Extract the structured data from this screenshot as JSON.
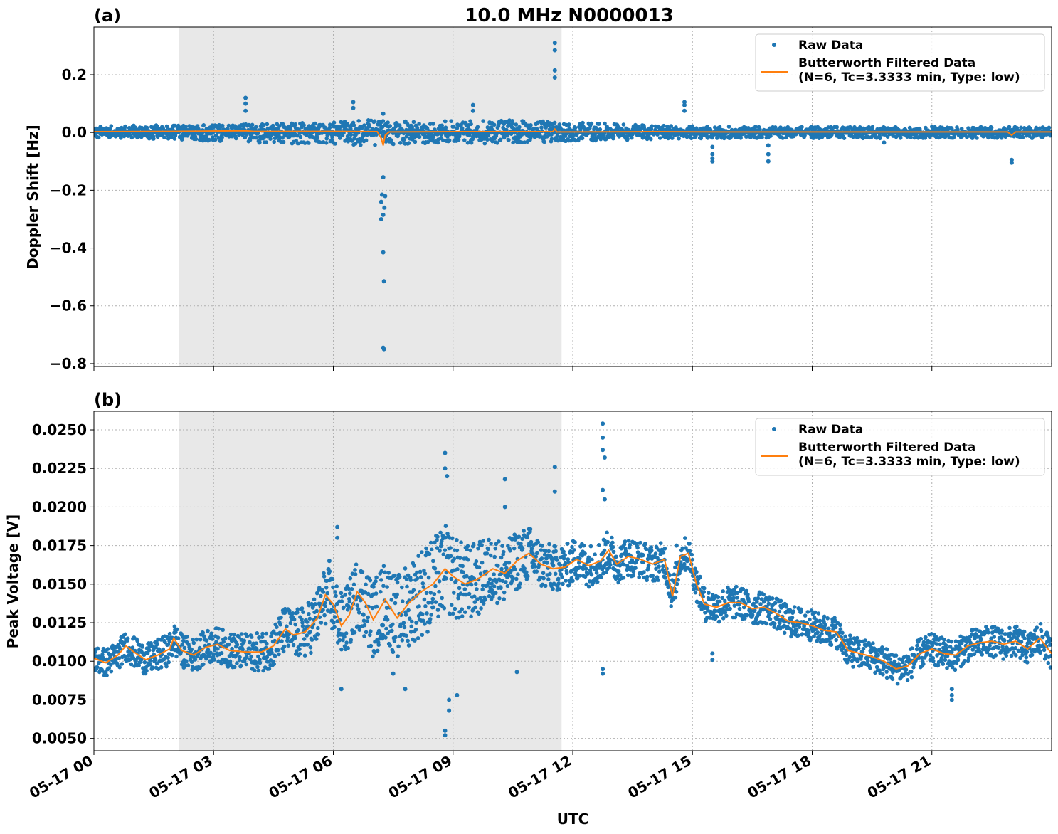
{
  "chart_data": {
    "title": "10.0 MHz N0000013",
    "xlabel": "UTC",
    "x_ticks": [
      "05-17 00",
      "05-17 03",
      "05-17 06",
      "05-17 09",
      "05-17 12",
      "05-17 15",
      "05-17 18",
      "05-17 21"
    ],
    "xlim_hours": [
      0,
      24
    ],
    "shaded_interval_hours": [
      2.13,
      11.72
    ],
    "colors": {
      "raw": "#1f77b4",
      "filtered": "#ff7f0e",
      "shade": "#e8e8e8",
      "grid": "#b0b0b0"
    },
    "legend": {
      "placement": "upper-right",
      "raw_label": "Raw Data",
      "filtered_label_line1": "Butterworth Filtered Data",
      "filtered_label_line2": "(N=6, Tc=3.3333 min, Type: low)"
    },
    "panels": [
      {
        "panel_label": "(a)",
        "type": "scatter+line",
        "ylabel": "Doppler Shift [Hz]",
        "ylim": [
          -0.81,
          0.365
        ],
        "y_ticks": [
          -0.8,
          -0.6,
          -0.4,
          -0.2,
          0.0,
          0.2
        ],
        "y_tick_labels": [
          "−0.8",
          "−0.6",
          "−0.4",
          "−0.2",
          "0.0",
          "0.2"
        ],
        "band": [
          [
            0,
            0.02,
            -0.02
          ],
          [
            1,
            0.025,
            -0.02
          ],
          [
            2,
            0.025,
            -0.025
          ],
          [
            3,
            0.028,
            -0.03
          ],
          [
            4,
            0.03,
            -0.035
          ],
          [
            5,
            0.035,
            -0.04
          ],
          [
            6,
            0.035,
            -0.04
          ],
          [
            7,
            0.045,
            -0.045
          ],
          [
            8,
            0.04,
            -0.04
          ],
          [
            9,
            0.04,
            -0.035
          ],
          [
            10,
            0.045,
            -0.04
          ],
          [
            11,
            0.04,
            -0.035
          ],
          [
            12,
            0.035,
            -0.03
          ],
          [
            13,
            0.03,
            -0.03
          ],
          [
            14,
            0.025,
            -0.025
          ],
          [
            15,
            0.022,
            -0.022
          ],
          [
            16,
            0.02,
            -0.02
          ],
          [
            18,
            0.02,
            -0.02
          ],
          [
            20,
            0.02,
            -0.02
          ],
          [
            22,
            0.02,
            -0.02
          ],
          [
            24,
            0.02,
            -0.02
          ]
        ],
        "spikes": [
          [
            3.8,
            0.12
          ],
          [
            3.8,
            0.1
          ],
          [
            3.8,
            0.075
          ],
          [
            6.5,
            0.105
          ],
          [
            6.5,
            0.085
          ],
          [
            7.25,
            -0.155
          ],
          [
            7.22,
            -0.215
          ],
          [
            7.3,
            -0.22
          ],
          [
            7.2,
            -0.24
          ],
          [
            7.28,
            -0.26
          ],
          [
            7.25,
            -0.285
          ],
          [
            7.2,
            -0.3
          ],
          [
            7.25,
            -0.415
          ],
          [
            7.27,
            -0.515
          ],
          [
            7.25,
            -0.745
          ],
          [
            7.27,
            -0.75
          ],
          [
            7.25,
            0.065
          ],
          [
            9.5,
            0.095
          ],
          [
            9.5,
            0.075
          ],
          [
            11.55,
            0.31
          ],
          [
            11.55,
            0.285
          ],
          [
            11.55,
            0.215
          ],
          [
            11.55,
            0.19
          ],
          [
            14.8,
            0.105
          ],
          [
            14.8,
            0.095
          ],
          [
            14.8,
            0.075
          ],
          [
            15.5,
            -0.05
          ],
          [
            15.5,
            -0.075
          ],
          [
            15.5,
            -0.09
          ],
          [
            15.5,
            -0.1
          ],
          [
            16.9,
            -0.045
          ],
          [
            16.9,
            -0.075
          ],
          [
            16.9,
            -0.1
          ],
          [
            19.8,
            -0.035
          ],
          [
            23.0,
            -0.095
          ],
          [
            23.0,
            -0.105
          ]
        ],
        "filtered": [
          [
            0,
            0.003
          ],
          [
            2,
            0.004
          ],
          [
            3.8,
            0.006
          ],
          [
            4,
            0.004
          ],
          [
            6,
            0.004
          ],
          [
            7.1,
            0.003
          ],
          [
            7.2,
            -0.02
          ],
          [
            7.25,
            -0.045
          ],
          [
            7.3,
            -0.01
          ],
          [
            7.4,
            0.002
          ],
          [
            9,
            0.003
          ],
          [
            11.5,
            0.003
          ],
          [
            11.55,
            0.012
          ],
          [
            11.6,
            0.002
          ],
          [
            14,
            0.003
          ],
          [
            16,
            0.002
          ],
          [
            19,
            0.002
          ],
          [
            22.9,
            0.002
          ],
          [
            23.0,
            -0.01
          ],
          [
            23.1,
            0.002
          ],
          [
            24,
            0.002
          ]
        ]
      },
      {
        "panel_label": "(b)",
        "type": "scatter+line",
        "ylabel": "Peak Voltage [V]",
        "ylim": [
          0.0042,
          0.0262
        ],
        "y_ticks": [
          0.005,
          0.0075,
          0.01,
          0.0125,
          0.015,
          0.0175,
          0.02,
          0.0225,
          0.025
        ],
        "y_tick_labels": [
          "0.0050",
          "0.0075",
          "0.0100",
          "0.0125",
          "0.0150",
          "0.0175",
          "0.0200",
          "0.0225",
          "0.0250"
        ],
        "filtered": [
          [
            0,
            0.0102
          ],
          [
            0.3,
            0.0099
          ],
          [
            0.6,
            0.0104
          ],
          [
            0.8,
            0.011
          ],
          [
            1.0,
            0.0106
          ],
          [
            1.3,
            0.0101
          ],
          [
            1.6,
            0.0104
          ],
          [
            1.9,
            0.0108
          ],
          [
            2.0,
            0.0115
          ],
          [
            2.2,
            0.0107
          ],
          [
            2.5,
            0.0104
          ],
          [
            2.8,
            0.0109
          ],
          [
            3.1,
            0.0111
          ],
          [
            3.4,
            0.0107
          ],
          [
            3.8,
            0.0106
          ],
          [
            4.2,
            0.0106
          ],
          [
            4.5,
            0.011
          ],
          [
            4.8,
            0.0121
          ],
          [
            5.0,
            0.0117
          ],
          [
            5.3,
            0.0119
          ],
          [
            5.6,
            0.0128
          ],
          [
            5.8,
            0.0143
          ],
          [
            6.0,
            0.0137
          ],
          [
            6.2,
            0.0123
          ],
          [
            6.4,
            0.013
          ],
          [
            6.6,
            0.0145
          ],
          [
            6.8,
            0.0138
          ],
          [
            7.0,
            0.0127
          ],
          [
            7.3,
            0.014
          ],
          [
            7.6,
            0.0128
          ],
          [
            7.9,
            0.0138
          ],
          [
            8.2,
            0.0145
          ],
          [
            8.5,
            0.015
          ],
          [
            8.8,
            0.016
          ],
          [
            9.0,
            0.0155
          ],
          [
            9.3,
            0.015
          ],
          [
            9.6,
            0.0153
          ],
          [
            10.0,
            0.016
          ],
          [
            10.3,
            0.0157
          ],
          [
            10.6,
            0.0165
          ],
          [
            10.9,
            0.017
          ],
          [
            11.2,
            0.0163
          ],
          [
            11.5,
            0.016
          ],
          [
            11.8,
            0.0161
          ],
          [
            12.1,
            0.0166
          ],
          [
            12.4,
            0.0162
          ],
          [
            12.7,
            0.0165
          ],
          [
            12.9,
            0.0172
          ],
          [
            13.1,
            0.0163
          ],
          [
            13.4,
            0.0168
          ],
          [
            13.7,
            0.0166
          ],
          [
            14.0,
            0.0163
          ],
          [
            14.3,
            0.0166
          ],
          [
            14.5,
            0.0142
          ],
          [
            14.7,
            0.0168
          ],
          [
            14.9,
            0.017
          ],
          [
            15.1,
            0.015
          ],
          [
            15.3,
            0.0137
          ],
          [
            15.6,
            0.0135
          ],
          [
            15.9,
            0.0138
          ],
          [
            16.2,
            0.0138
          ],
          [
            16.5,
            0.0134
          ],
          [
            16.8,
            0.0135
          ],
          [
            17.1,
            0.0131
          ],
          [
            17.4,
            0.0126
          ],
          [
            17.7,
            0.0125
          ],
          [
            18.0,
            0.0123
          ],
          [
            18.3,
            0.012
          ],
          [
            18.6,
            0.0119
          ],
          [
            18.9,
            0.0107
          ],
          [
            19.2,
            0.0105
          ],
          [
            19.5,
            0.0103
          ],
          [
            19.8,
            0.01
          ],
          [
            20.1,
            0.0095
          ],
          [
            20.4,
            0.0097
          ],
          [
            20.7,
            0.0105
          ],
          [
            21.0,
            0.0108
          ],
          [
            21.3,
            0.0105
          ],
          [
            21.6,
            0.0104
          ],
          [
            21.9,
            0.011
          ],
          [
            22.2,
            0.0112
          ],
          [
            22.5,
            0.0113
          ],
          [
            22.8,
            0.0111
          ],
          [
            23.1,
            0.0113
          ],
          [
            23.4,
            0.0108
          ],
          [
            23.7,
            0.0115
          ],
          [
            24.0,
            0.0105
          ]
        ],
        "band_halfwidth": [
          [
            0,
            0.0009
          ],
          [
            4,
            0.0012
          ],
          [
            5.5,
            0.0018
          ],
          [
            7,
            0.0025
          ],
          [
            8.5,
            0.003
          ],
          [
            10,
            0.0022
          ],
          [
            11.5,
            0.0015
          ],
          [
            13,
            0.0013
          ],
          [
            15,
            0.0011
          ],
          [
            18,
            0.001
          ],
          [
            24,
            0.001
          ]
        ],
        "spikes": [
          [
            6.1,
            0.0187
          ],
          [
            6.1,
            0.018
          ],
          [
            5.9,
            0.0165
          ],
          [
            6.2,
            0.0082
          ],
          [
            8.8,
            0.0235
          ],
          [
            8.8,
            0.0225
          ],
          [
            8.85,
            0.022
          ],
          [
            8.8,
            0.0055
          ],
          [
            8.8,
            0.0052
          ],
          [
            8.9,
            0.0068
          ],
          [
            8.9,
            0.0075
          ],
          [
            10.3,
            0.0218
          ],
          [
            10.3,
            0.02
          ],
          [
            11.55,
            0.0226
          ],
          [
            11.55,
            0.021
          ],
          [
            12.75,
            0.0254
          ],
          [
            12.75,
            0.0245
          ],
          [
            12.75,
            0.0237
          ],
          [
            12.8,
            0.0232
          ],
          [
            12.75,
            0.0211
          ],
          [
            12.8,
            0.0205
          ],
          [
            12.75,
            0.0092
          ],
          [
            12.75,
            0.0095
          ],
          [
            7.5,
            0.0092
          ],
          [
            7.8,
            0.0082
          ],
          [
            9.1,
            0.0078
          ],
          [
            10.6,
            0.0093
          ],
          [
            21.5,
            0.0075
          ],
          [
            21.5,
            0.0078
          ],
          [
            21.5,
            0.0082
          ],
          [
            15.5,
            0.0101
          ],
          [
            15.5,
            0.0105
          ],
          [
            14.6,
            0.0175
          ]
        ]
      }
    ]
  }
}
